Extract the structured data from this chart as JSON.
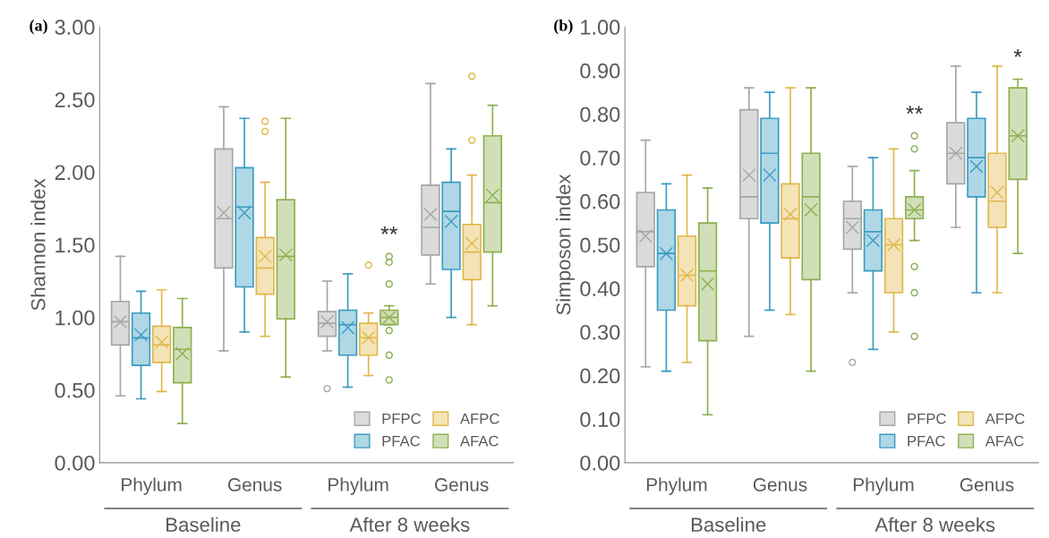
{
  "chart_data": [
    {
      "type": "box",
      "title": "(a)",
      "ylabel": "Shannon index",
      "categories": [
        "Phylum",
        "Genus",
        "Phylum",
        "Genus"
      ],
      "ylim": [
        0,
        3
      ],
      "yticks": [
        {
          "value": 0,
          "label": "0.00"
        },
        {
          "value": 0.5,
          "label": "0.50"
        },
        {
          "value": 1,
          "label": "1.00"
        },
        {
          "value": 1.5,
          "label": "1.50"
        },
        {
          "value": 2,
          "label": "2.00"
        },
        {
          "value": 2.5,
          "label": "2.50"
        },
        {
          "value": 3,
          "label": "3.00"
        }
      ],
      "grid": false,
      "legend": "bottom right",
      "annotations": [
        "Baseline",
        "After 8 weeks",
        "**"
      ],
      "series": [
        {
          "name": "PFPC",
          "color": "#a6a6a6",
          "boxes": [
            {
              "low": 0.46,
              "q1": 0.81,
              "median": 0.97,
              "q3": 1.11,
              "high": 1.42,
              "mean": 0.97
            },
            {
              "low": 0.77,
              "q1": 1.34,
              "median": 1.68,
              "q3": 2.16,
              "high": 2.45,
              "mean": 1.72
            },
            {
              "low": 0.77,
              "q1": 0.87,
              "median": 0.96,
              "q3": 1.04,
              "high": 1.25,
              "mean": 0.97,
              "outliers": [
                0.51
              ]
            },
            {
              "low": 1.23,
              "q1": 1.43,
              "median": 1.62,
              "q3": 1.91,
              "high": 2.61,
              "mean": 1.71
            }
          ]
        },
        {
          "name": "PFAC",
          "color": "#3a9bc1",
          "boxes": [
            {
              "low": 0.44,
              "q1": 0.67,
              "median": 0.86,
              "q3": 1.03,
              "high": 1.18,
              "mean": 0.88
            },
            {
              "low": 0.9,
              "q1": 1.21,
              "median": 1.76,
              "q3": 2.03,
              "high": 2.37,
              "mean": 1.72
            },
            {
              "low": 0.52,
              "q1": 0.74,
              "median": 0.95,
              "q3": 1.05,
              "high": 1.3,
              "mean": 0.93
            },
            {
              "low": 1.0,
              "q1": 1.33,
              "median": 1.73,
              "q3": 1.93,
              "high": 2.16,
              "mean": 1.66
            }
          ]
        },
        {
          "name": "AFPC",
          "color": "#e0b84a",
          "boxes": [
            {
              "low": 0.49,
              "q1": 0.69,
              "median": 0.81,
              "q3": 0.94,
              "high": 1.19,
              "mean": 0.83
            },
            {
              "low": 0.87,
              "q1": 1.16,
              "median": 1.34,
              "q3": 1.55,
              "high": 1.93,
              "mean": 1.42,
              "outliers": [
                2.35,
                2.28
              ]
            },
            {
              "low": 0.6,
              "q1": 0.74,
              "median": 0.86,
              "q3": 0.96,
              "high": 1.03,
              "mean": 0.86,
              "outliers": [
                1.36
              ]
            },
            {
              "low": 0.95,
              "q1": 1.26,
              "median": 1.45,
              "q3": 1.64,
              "high": 1.98,
              "mean": 1.51,
              "outliers": [
                2.66,
                2.22
              ]
            }
          ]
        },
        {
          "name": "AFAC",
          "color": "#8db050",
          "boxes": [
            {
              "low": 0.27,
              "q1": 0.55,
              "median": 0.78,
              "q3": 0.93,
              "high": 1.13,
              "mean": 0.75
            },
            {
              "low": 0.59,
              "q1": 0.99,
              "median": 1.42,
              "q3": 1.81,
              "high": 2.37,
              "mean": 1.43
            },
            {
              "low": 0.95,
              "q1": 0.95,
              "median": 1.0,
              "q3": 1.05,
              "high": 1.08,
              "mean": 1.0,
              "outliers": [
                1.42,
                1.38,
                1.23,
                0.91,
                0.74,
                0.57
              ]
            },
            {
              "low": 1.08,
              "q1": 1.45,
              "median": 1.79,
              "q3": 2.25,
              "high": 2.46,
              "mean": 1.84
            }
          ]
        }
      ]
    },
    {
      "type": "box",
      "title": "(b)",
      "ylabel": "Simposon index",
      "categories": [
        "Phylum",
        "Genus",
        "Phylum",
        "Genus"
      ],
      "ylim": [
        0,
        1
      ],
      "yticks": [
        {
          "value": 0,
          "label": "0.00"
        },
        {
          "value": 0.1,
          "label": "0.10"
        },
        {
          "value": 0.2,
          "label": "0.20"
        },
        {
          "value": 0.3,
          "label": "0.30"
        },
        {
          "value": 0.4,
          "label": "0.40"
        },
        {
          "value": 0.5,
          "label": "0.50"
        },
        {
          "value": 0.6,
          "label": "0.60"
        },
        {
          "value": 0.7,
          "label": "0.70"
        },
        {
          "value": 0.8,
          "label": "0.80"
        },
        {
          "value": 0.9,
          "label": "0.90"
        },
        {
          "value": 1,
          "label": "1.00"
        }
      ],
      "grid": false,
      "legend": "bottom right",
      "annotations": [
        "Baseline",
        "After 8 weeks",
        "**",
        "*"
      ],
      "series": [
        {
          "name": "PFPC",
          "color": "#a6a6a6",
          "boxes": [
            {
              "low": 0.22,
              "q1": 0.45,
              "median": 0.53,
              "q3": 0.62,
              "high": 0.74,
              "mean": 0.52
            },
            {
              "low": 0.29,
              "q1": 0.56,
              "median": 0.61,
              "q3": 0.81,
              "high": 0.86,
              "mean": 0.66
            },
            {
              "low": 0.39,
              "q1": 0.49,
              "median": 0.56,
              "q3": 0.6,
              "high": 0.68,
              "mean": 0.54,
              "outliers": [
                0.23
              ]
            },
            {
              "low": 0.54,
              "q1": 0.64,
              "median": 0.71,
              "q3": 0.78,
              "high": 0.91,
              "mean": 0.71
            }
          ]
        },
        {
          "name": "PFAC",
          "color": "#3a9bc1",
          "boxes": [
            {
              "low": 0.21,
              "q1": 0.35,
              "median": 0.48,
              "q3": 0.58,
              "high": 0.64,
              "mean": 0.48
            },
            {
              "low": 0.35,
              "q1": 0.55,
              "median": 0.71,
              "q3": 0.79,
              "high": 0.85,
              "mean": 0.66
            },
            {
              "low": 0.26,
              "q1": 0.44,
              "median": 0.53,
              "q3": 0.58,
              "high": 0.7,
              "mean": 0.51
            },
            {
              "low": 0.39,
              "q1": 0.61,
              "median": 0.7,
              "q3": 0.79,
              "high": 0.85,
              "mean": 0.68
            }
          ]
        },
        {
          "name": "AFPC",
          "color": "#e0b84a",
          "boxes": [
            {
              "low": 0.23,
              "q1": 0.36,
              "median": 0.43,
              "q3": 0.52,
              "high": 0.66,
              "mean": 0.43
            },
            {
              "low": 0.34,
              "q1": 0.47,
              "median": 0.56,
              "q3": 0.64,
              "high": 0.86,
              "mean": 0.57
            },
            {
              "low": 0.3,
              "q1": 0.39,
              "median": 0.5,
              "q3": 0.56,
              "high": 0.72,
              "mean": 0.5
            },
            {
              "low": 0.39,
              "q1": 0.54,
              "median": 0.6,
              "q3": 0.71,
              "high": 0.91,
              "mean": 0.62
            }
          ]
        },
        {
          "name": "AFAC",
          "color": "#8db050",
          "boxes": [
            {
              "low": 0.11,
              "q1": 0.28,
              "median": 0.44,
              "q3": 0.55,
              "high": 0.63,
              "mean": 0.41
            },
            {
              "low": 0.21,
              "q1": 0.42,
              "median": 0.61,
              "q3": 0.71,
              "high": 0.86,
              "mean": 0.58
            },
            {
              "low": 0.51,
              "q1": 0.56,
              "median": 0.58,
              "q3": 0.61,
              "high": 0.67,
              "mean": 0.58,
              "outliers": [
                0.75,
                0.72,
                0.45,
                0.39,
                0.29
              ]
            },
            {
              "low": 0.48,
              "q1": 0.65,
              "median": 0.75,
              "q3": 0.86,
              "high": 0.88,
              "mean": 0.75
            }
          ]
        }
      ]
    }
  ]
}
